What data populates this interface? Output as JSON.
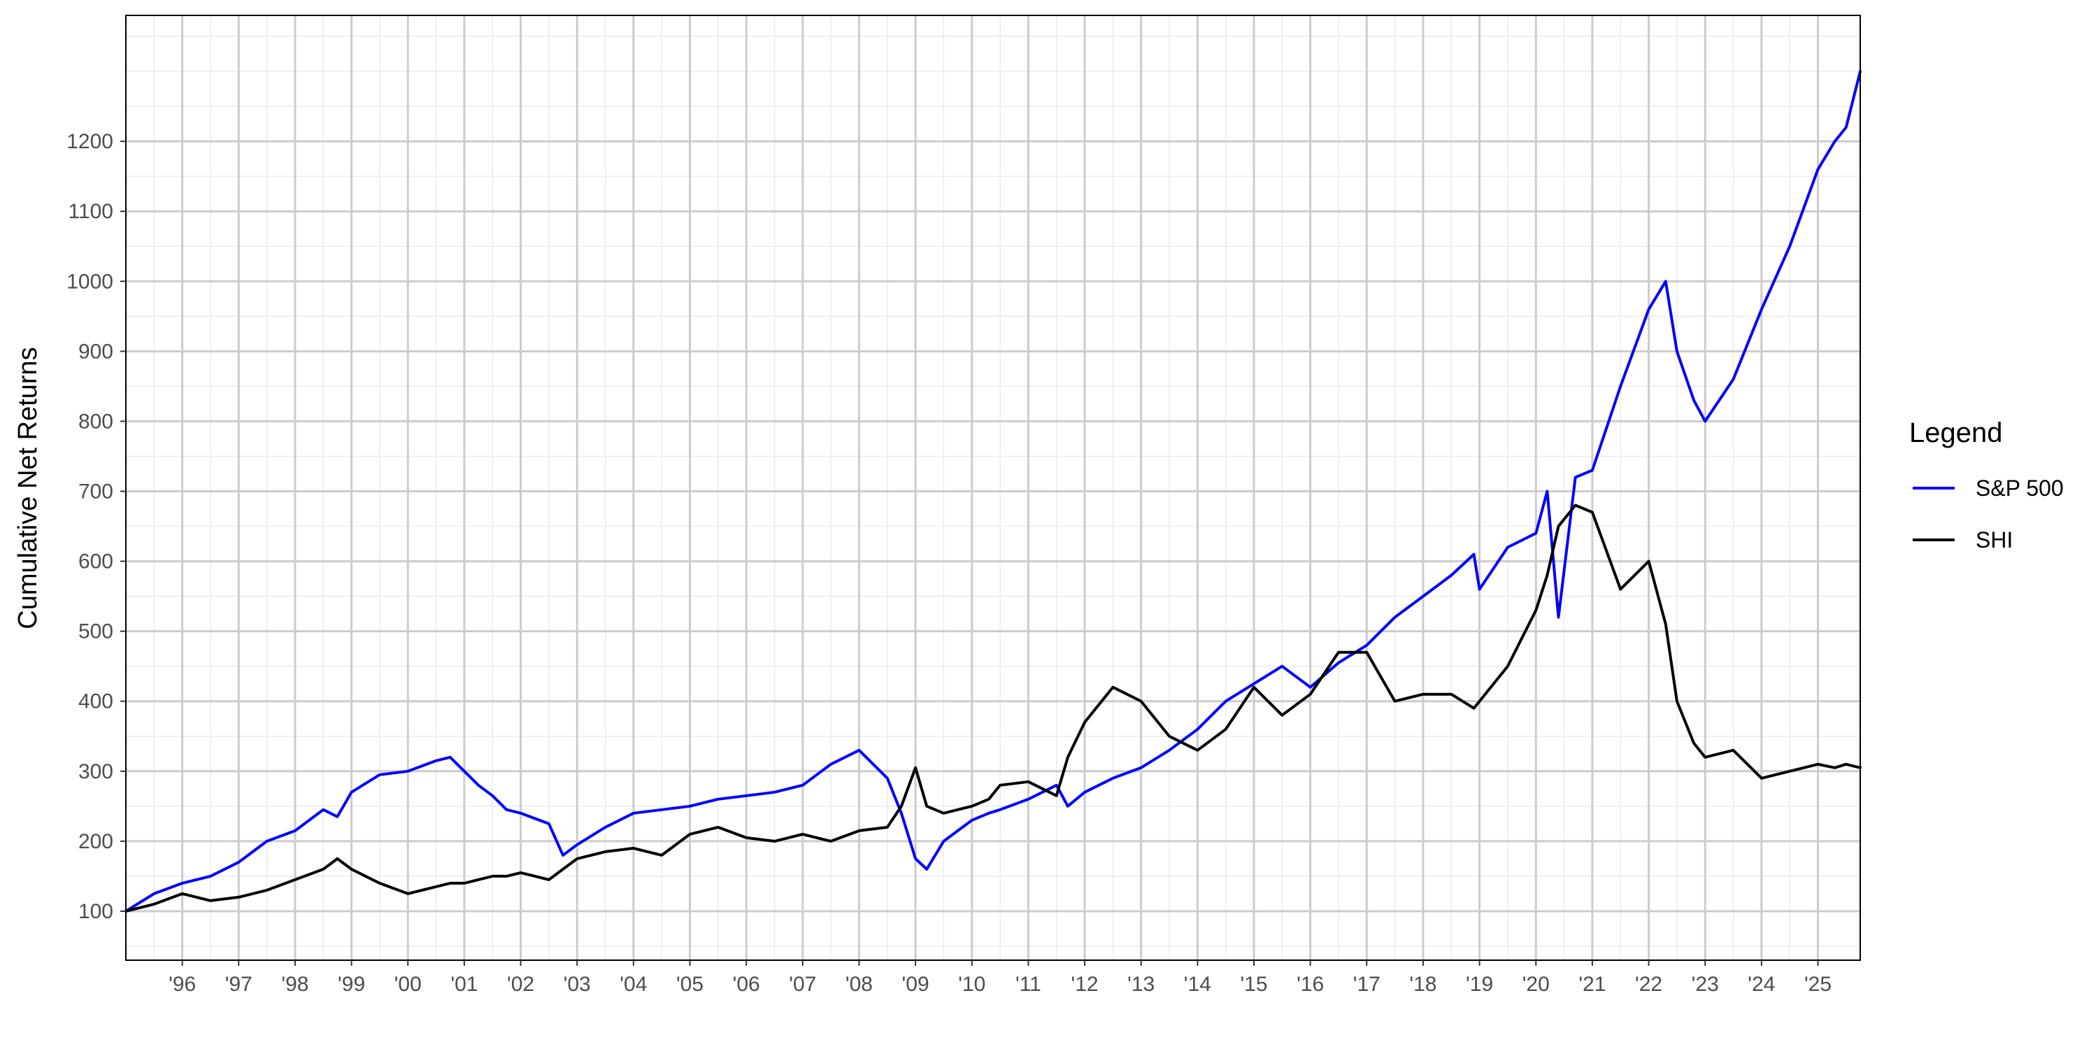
{
  "chart_data": {
    "type": "line",
    "title": "",
    "xlabel": "",
    "ylabel": "Cumulative Net Returns",
    "xlim": [
      1995.0,
      2025.75
    ],
    "ylim": [
      30,
      1380
    ],
    "grid": true,
    "legend": {
      "title": "Legend",
      "position": "right",
      "entries": [
        "S&P 500",
        "SHI"
      ]
    },
    "x_tick_values": [
      1996,
      1997,
      1998,
      1999,
      2000,
      2001,
      2002,
      2003,
      2004,
      2005,
      2006,
      2007,
      2008,
      2009,
      2010,
      2011,
      2012,
      2013,
      2014,
      2015,
      2016,
      2017,
      2018,
      2019,
      2020,
      2021,
      2022,
      2023,
      2024,
      2025
    ],
    "x_tick_labels": [
      "'96",
      "'97",
      "'98",
      "'99",
      "'00",
      "'01",
      "'02",
      "'03",
      "'04",
      "'05",
      "'06",
      "'07",
      "'08",
      "'09",
      "'10",
      "'11",
      "'12",
      "'13",
      "'14",
      "'15",
      "'16",
      "'17",
      "'18",
      "'19",
      "'20",
      "'21",
      "'22",
      "'23",
      "'24",
      "'25"
    ],
    "y_ticks": [
      100,
      200,
      300,
      400,
      500,
      600,
      700,
      800,
      900,
      1000,
      1100,
      1200
    ],
    "y_tick_labels": [
      "100",
      "200",
      "300",
      "400",
      "500",
      "600",
      "700",
      "800",
      "900",
      "1000",
      "1100",
      "1200"
    ],
    "x": [
      1995.0,
      1995.5,
      1996.0,
      1996.5,
      1997.0,
      1997.5,
      1998.0,
      1998.5,
      1998.75,
      1999.0,
      1999.5,
      2000.0,
      2000.5,
      2000.75,
      2001.0,
      2001.25,
      2001.5,
      2001.75,
      2002.0,
      2002.5,
      2002.75,
      2003.0,
      2003.5,
      2004.0,
      2004.5,
      2005.0,
      2005.5,
      2006.0,
      2006.5,
      2007.0,
      2007.5,
      2008.0,
      2008.5,
      2008.75,
      2009.0,
      2009.2,
      2009.5,
      2010.0,
      2010.3,
      2010.5,
      2011.0,
      2011.5,
      2011.7,
      2012.0,
      2012.5,
      2013.0,
      2013.5,
      2014.0,
      2014.5,
      2015.0,
      2015.5,
      2016.0,
      2016.5,
      2017.0,
      2017.5,
      2018.0,
      2018.5,
      2018.9,
      2019.0,
      2019.5,
      2020.0,
      2020.2,
      2020.4,
      2020.7,
      2021.0,
      2021.5,
      2022.0,
      2022.3,
      2022.5,
      2022.8,
      2023.0,
      2023.5,
      2024.0,
      2024.5,
      2025.0,
      2025.3,
      2025.5,
      2025.75
    ],
    "series": [
      {
        "name": "S&P 500",
        "color": "#0000ff",
        "values": [
          100,
          125,
          140,
          150,
          170,
          200,
          215,
          245,
          235,
          270,
          295,
          300,
          315,
          320,
          300,
          280,
          265,
          245,
          240,
          225,
          180,
          195,
          220,
          240,
          245,
          250,
          260,
          265,
          270,
          280,
          310,
          330,
          290,
          240,
          175,
          160,
          200,
          230,
          240,
          245,
          260,
          280,
          250,
          270,
          290,
          305,
          330,
          360,
          400,
          425,
          450,
          420,
          455,
          480,
          520,
          550,
          580,
          610,
          560,
          620,
          640,
          700,
          520,
          720,
          730,
          850,
          960,
          1000,
          900,
          830,
          800,
          860,
          960,
          1050,
          1160,
          1200,
          1220,
          1300
        ]
      },
      {
        "name": "SHI",
        "color": "#000000",
        "values": [
          100,
          110,
          125,
          115,
          120,
          130,
          145,
          160,
          175,
          160,
          140,
          125,
          135,
          140,
          140,
          145,
          150,
          150,
          155,
          145,
          160,
          175,
          185,
          190,
          180,
          210,
          220,
          205,
          200,
          210,
          200,
          215,
          220,
          250,
          305,
          250,
          240,
          250,
          260,
          280,
          285,
          265,
          320,
          370,
          420,
          400,
          350,
          330,
          360,
          420,
          380,
          410,
          470,
          470,
          400,
          410,
          410,
          390,
          400,
          450,
          530,
          580,
          650,
          680,
          670,
          560,
          600,
          510,
          400,
          340,
          320,
          330,
          290,
          300,
          310,
          305,
          310,
          305
        ]
      }
    ]
  }
}
